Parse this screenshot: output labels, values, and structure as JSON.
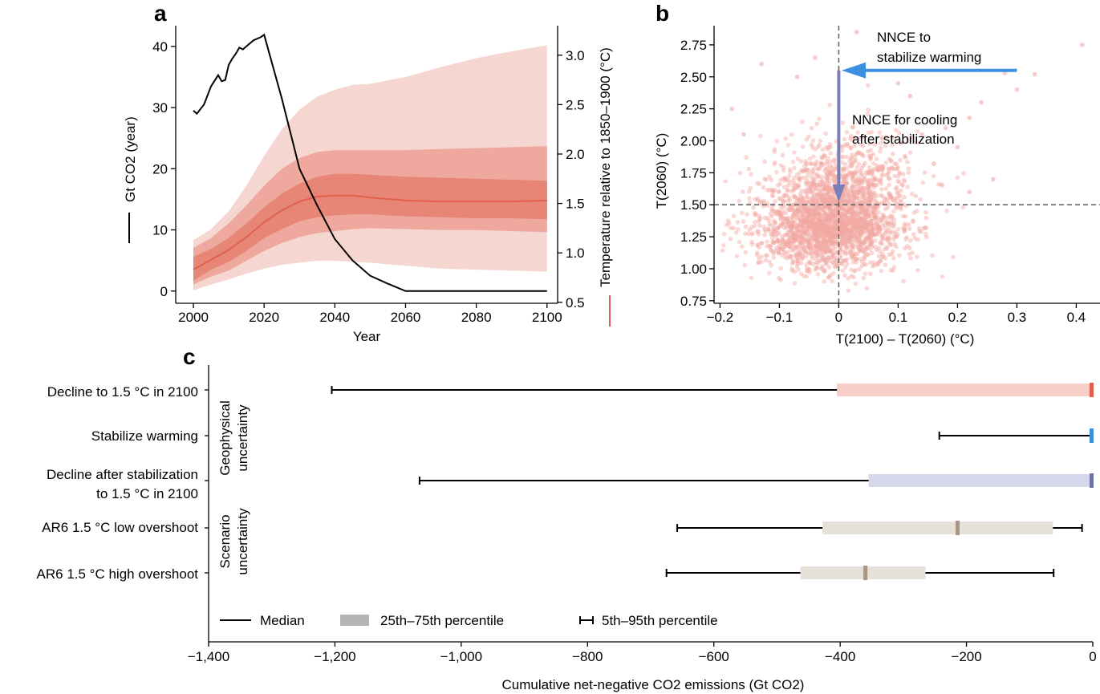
{
  "colors": {
    "co2_line": "#000000",
    "temp_median": "#e0604d",
    "band_outer": "#f6d6d1",
    "band_mid": "#eea89e",
    "band_inner": "#e57f70",
    "scatter": "#f2a9a2",
    "arrow_blue": "#3d8fdf",
    "arrow_purple": "#7a7fb7",
    "bar_decline": "#f7cdc8",
    "med_decline": "#e0604d",
    "med_stabilize": "#3d8fdf",
    "bar_after": "#d5d8ea",
    "med_after": "#6f73a5",
    "bar_ar6": "#e5e0d8",
    "med_ar6": "#a99582",
    "legend_box": "#b3b3b3"
  },
  "chart_data": [
    {
      "panel": "a",
      "type": "line",
      "xlabel": "Year",
      "ylabel_left": "Gt CO2 (year)",
      "ylabel_right": "Temperature relative to 1850–1900 (°C)",
      "xlim": [
        1995,
        2103
      ],
      "ylim_left": [
        -2,
        42.6
      ],
      "ylim_right": [
        0.49,
        3.25
      ],
      "xticks": [
        2000,
        2020,
        2040,
        2060,
        2080,
        2100
      ],
      "yticks_left": [
        0,
        10,
        20,
        30,
        40
      ],
      "yticks_right": [
        0.5,
        1.0,
        1.5,
        2.0,
        2.5,
        3.0
      ],
      "co2_emissions": {
        "axis": "left",
        "x": [
          2000,
          2001,
          2003,
          2005,
          2007,
          2008,
          2009,
          2010,
          2011,
          2012,
          2013,
          2014,
          2015,
          2017,
          2019,
          2020,
          2025,
          2030,
          2035,
          2040,
          2045,
          2050,
          2055,
          2060,
          2070,
          2080,
          2090,
          2100
        ],
        "y": [
          29.5,
          29.0,
          30.5,
          33.5,
          35.3,
          34.3,
          34.5,
          37.0,
          38.0,
          38.8,
          39.8,
          39.5,
          40.0,
          41.0,
          41.5,
          41.9,
          31.5,
          20.0,
          14.0,
          8.5,
          5.0,
          2.5,
          1.2,
          0.0,
          0.0,
          0.0,
          0.0,
          0.0
        ]
      },
      "temperature": {
        "axis": "right",
        "x": [
          2000,
          2005,
          2010,
          2015,
          2020,
          2025,
          2030,
          2035,
          2040,
          2045,
          2050,
          2060,
          2070,
          2080,
          2090,
          2100
        ],
        "median": [
          0.83,
          0.93,
          1.03,
          1.16,
          1.31,
          1.43,
          1.52,
          1.57,
          1.58,
          1.58,
          1.56,
          1.53,
          1.52,
          1.52,
          1.52,
          1.53
        ],
        "p17": [
          0.72,
          0.83,
          0.91,
          1.02,
          1.15,
          1.24,
          1.32,
          1.36,
          1.38,
          1.39,
          1.39,
          1.37,
          1.36,
          1.35,
          1.35,
          1.34
        ],
        "p83": [
          0.96,
          1.04,
          1.15,
          1.3,
          1.46,
          1.6,
          1.7,
          1.77,
          1.8,
          1.8,
          1.79,
          1.77,
          1.76,
          1.75,
          1.74,
          1.73
        ],
        "p05": [
          0.68,
          0.76,
          0.82,
          0.92,
          1.02,
          1.1,
          1.16,
          1.2,
          1.22,
          1.24,
          1.25,
          1.24,
          1.23,
          1.23,
          1.22,
          1.21
        ],
        "p95": [
          1.05,
          1.15,
          1.3,
          1.48,
          1.68,
          1.85,
          1.96,
          2.02,
          2.04,
          2.04,
          2.04,
          2.04,
          2.05,
          2.06,
          2.07,
          2.08
        ],
        "p01": [
          0.62,
          0.68,
          0.73,
          0.79,
          0.84,
          0.88,
          0.9,
          0.92,
          0.92,
          0.91,
          0.9,
          0.87,
          0.84,
          0.83,
          0.82,
          0.81
        ],
        "p99": [
          1.13,
          1.24,
          1.42,
          1.68,
          1.98,
          2.25,
          2.45,
          2.58,
          2.65,
          2.7,
          2.71,
          2.78,
          2.88,
          2.97,
          3.04,
          3.1
        ]
      }
    },
    {
      "panel": "b",
      "type": "scatter",
      "xlabel": "T(2100) – T(2060) (°C)",
      "ylabel": "T(2060) (°C)",
      "xlim": [
        -0.21,
        0.44
      ],
      "ylim": [
        0.73,
        2.9
      ],
      "xticks": [
        -0.2,
        -0.1,
        0,
        0.1,
        0.2,
        0.3,
        0.4
      ],
      "xtick_labels": [
        "−0.2",
        "−0.1",
        "0",
        "0.1",
        "0.2",
        "0.3",
        "0.4"
      ],
      "yticks": [
        0.75,
        1.0,
        1.25,
        1.5,
        1.75,
        2.0,
        2.25,
        2.5,
        2.75
      ],
      "ytick_labels": [
        "0.75",
        "1.00",
        "1.25",
        "1.50",
        "1.75",
        "2.00",
        "2.25",
        "2.50",
        "2.75"
      ],
      "reference_lines": {
        "x": 0,
        "y": 1.5
      },
      "cloud_center": {
        "x": -0.01,
        "y": 1.38
      },
      "cloud_spread": {
        "x": 0.06,
        "y": 0.22
      },
      "cloud_count": 2600,
      "outliers": [
        {
          "x": 0.41,
          "y": 2.75
        },
        {
          "x": 0.33,
          "y": 2.52
        },
        {
          "x": 0.28,
          "y": 2.53
        },
        {
          "x": 0.3,
          "y": 2.4
        },
        {
          "x": 0.24,
          "y": 2.3
        },
        {
          "x": 0.22,
          "y": 2.18
        },
        {
          "x": 0.18,
          "y": 2.1
        },
        {
          "x": 0.2,
          "y": 1.95
        },
        {
          "x": 0.16,
          "y": 1.82
        },
        {
          "x": 0.14,
          "y": 2.05
        },
        {
          "x": 0.12,
          "y": 2.35
        },
        {
          "x": 0.1,
          "y": 2.45
        },
        {
          "x": 0.03,
          "y": 2.85
        },
        {
          "x": -0.04,
          "y": 2.65
        },
        {
          "x": -0.13,
          "y": 2.6
        },
        {
          "x": -0.18,
          "y": 2.25
        },
        {
          "x": -0.16,
          "y": 2.05
        },
        {
          "x": 0.26,
          "y": 1.7
        },
        {
          "x": 0.22,
          "y": 1.6
        },
        {
          "x": -0.07,
          "y": 2.5
        }
      ],
      "annotations": [
        {
          "lines": [
            "NNCE to",
            "stabilize warming"
          ],
          "arrow_from": {
            "x": 0.3,
            "y": 2.55
          },
          "arrow_to": {
            "x": 0.005,
            "y": 2.55
          }
        },
        {
          "lines": [
            "NNCE for cooling",
            "after stabilization"
          ],
          "arrow_from": {
            "x": 0,
            "y": 2.55
          },
          "arrow_to": {
            "x": 0,
            "y": 1.52
          }
        }
      ]
    },
    {
      "panel": "c",
      "type": "box",
      "xlabel": "Cumulative net-negative CO2 emissions (Gt CO2)",
      "xlim": [
        -1400,
        0
      ],
      "xticks": [
        -1400,
        -1200,
        -1000,
        -800,
        -600,
        -400,
        -200,
        0
      ],
      "xtick_labels": [
        "−1,400",
        "−1,200",
        "−1,000",
        "−800",
        "−600",
        "−400",
        "−200",
        "0"
      ],
      "groups": [
        {
          "label_lines": [
            "Geophysical",
            "uncertainty"
          ]
        },
        {
          "label_lines": [
            "Scenario",
            "uncertainty"
          ]
        }
      ],
      "rows": [
        {
          "label_lines": [
            "Decline to 1.5 °C in 2100"
          ],
          "p5": -1205,
          "p25": -405,
          "median": 0,
          "p75": 0,
          "p95": 0,
          "bar_color_key": "bar_decline",
          "median_color_key": "med_decline"
        },
        {
          "label_lines": [
            "Stabilize warming"
          ],
          "p5": -243,
          "p25": 0,
          "median": 0,
          "p75": 0,
          "p95": 0,
          "bar_color_key": "bar_decline",
          "median_color_key": "med_stabilize"
        },
        {
          "label_lines": [
            "Decline after stabilization",
            "to 1.5 °C in 2100"
          ],
          "p5": -1066,
          "p25": -355,
          "median": 0,
          "p75": 0,
          "p95": 0,
          "bar_color_key": "bar_after",
          "median_color_key": "med_after"
        },
        {
          "label_lines": [
            "AR6 1.5 °C low overshoot"
          ],
          "p5": -658,
          "p25": -428,
          "median": -214,
          "p75": -63,
          "p95": -17,
          "bar_color_key": "bar_ar6",
          "median_color_key": "med_ar6"
        },
        {
          "label_lines": [
            "AR6 1.5 °C high overshoot"
          ],
          "p5": -675,
          "p25": -463,
          "median": -360,
          "p75": -265,
          "p95": -62,
          "bar_color_key": "bar_ar6",
          "median_color_key": "med_ar6"
        }
      ],
      "legend": [
        "Median",
        "25th–75th percentile",
        "5th–95th percentile"
      ]
    }
  ]
}
